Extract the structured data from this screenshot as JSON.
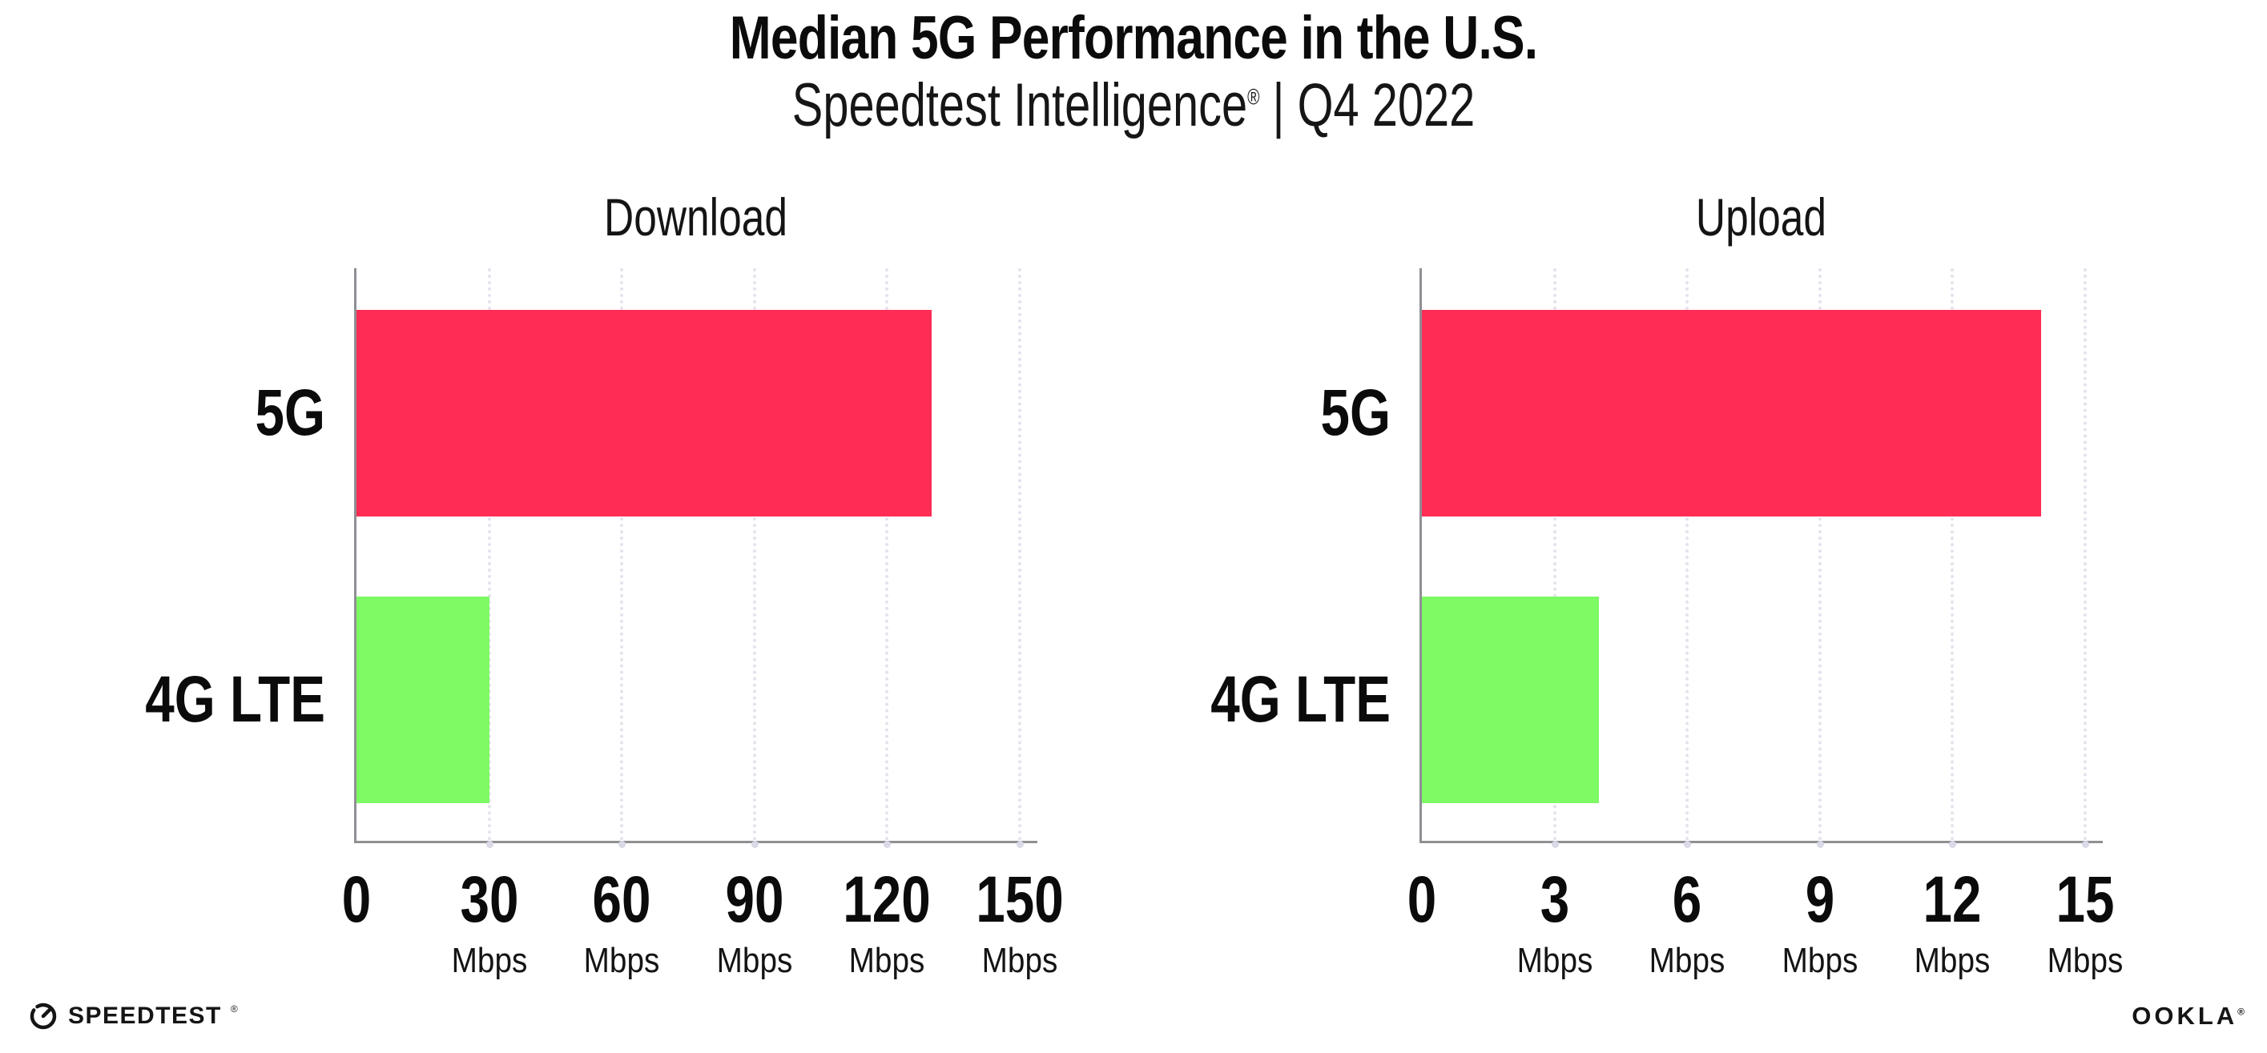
{
  "header": {
    "title": "Median 5G Performance in the U.S.",
    "subtitle_brand": "Speedtest Intelligence",
    "subtitle_reg": "®",
    "subtitle_rest": " | Q4 2022"
  },
  "colors": {
    "bar_5g": "#FF2D55",
    "bar_4g_lte": "#7DFA64",
    "axis": "#8F8F94",
    "gridline_dots": "#E3E3ED",
    "text": "#111111",
    "background": "#FFFFFF"
  },
  "chart_data": [
    {
      "type": "bar",
      "orientation": "horizontal",
      "title": "Download",
      "categories": [
        "5G",
        "4G LTE"
      ],
      "values": [
        130,
        30
      ],
      "bar_colors": [
        "#FF2D55",
        "#7DFA64"
      ],
      "unit": "Mbps",
      "xticks": [
        0,
        30,
        60,
        90,
        120,
        150
      ],
      "xlim": [
        0,
        150
      ],
      "grid": "dotted-vertical",
      "legend": "none"
    },
    {
      "type": "bar",
      "orientation": "horizontal",
      "title": "Upload",
      "categories": [
        "5G",
        "4G LTE"
      ],
      "values": [
        14,
        4
      ],
      "bar_colors": [
        "#FF2D55",
        "#7DFA64"
      ],
      "unit": "Mbps",
      "xticks": [
        0,
        3,
        6,
        9,
        12,
        15
      ],
      "xlim": [
        0,
        15
      ],
      "grid": "dotted-vertical",
      "legend": "none"
    }
  ],
  "footer": {
    "speedtest_logo_text": "SPEEDTEST",
    "speedtest_reg": "®",
    "ookla_logo_text": "OOKLA",
    "ookla_reg": "®"
  }
}
